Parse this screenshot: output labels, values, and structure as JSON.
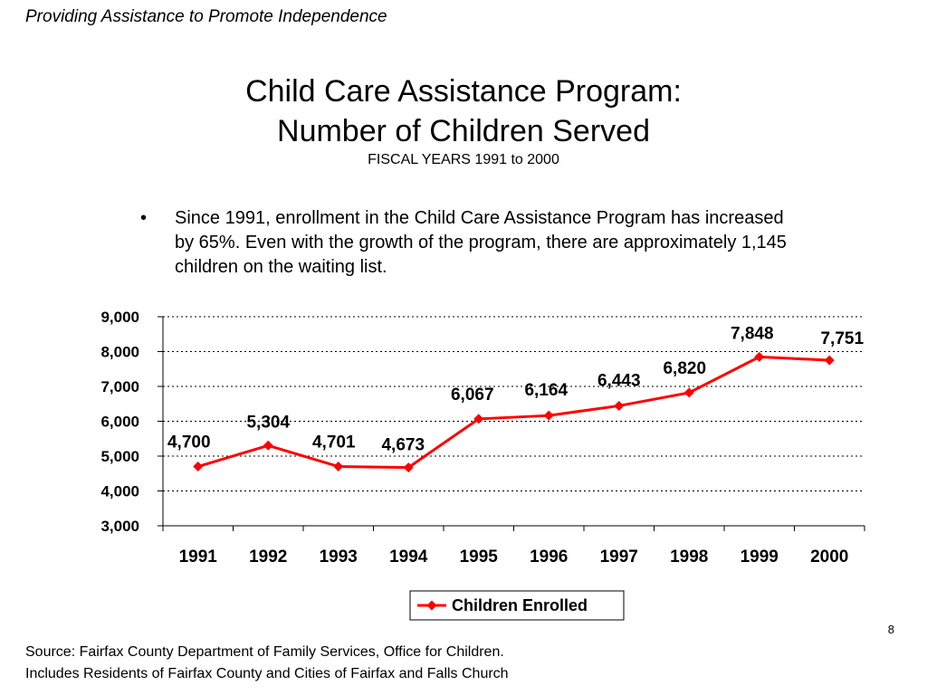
{
  "header": {
    "tagline": "Providing Assistance to Promote Independence"
  },
  "slide": {
    "title_line1": "Child Care Assistance Program:",
    "title_line2": "Number of Children Served",
    "subtitle": "FISCAL YEARS 1991 to 2000",
    "bullet_symbol": "•",
    "bullet_text": "Since 1991, enrollment in the Child Care Assistance Program has increased by 65%.  Even with the growth of the program, there are approximately 1,145 children on the waiting list.",
    "page_number": "8"
  },
  "footer": {
    "source_line1": "Source:  Fairfax County Department of Family Services, Office for Children.",
    "source_line2": "Includes Residents of Fairfax County and Cities of Fairfax and Falls Church"
  },
  "chart_data": {
    "type": "line",
    "categories": [
      "1991",
      "1992",
      "1993",
      "1994",
      "1995",
      "1996",
      "1997",
      "1998",
      "1999",
      "2000"
    ],
    "series": [
      {
        "name": "Children Enrolled",
        "values": [
          4700,
          5304,
          4701,
          4673,
          6067,
          6164,
          6443,
          6820,
          7848,
          7751
        ],
        "labels": [
          "4,700",
          "5,304",
          "4,701",
          "4,673",
          "6,067",
          "6,164",
          "6,443",
          "6,820",
          "7,848",
          "7,751"
        ],
        "color": "#ff0000",
        "marker": "diamond"
      }
    ],
    "ylim": [
      3000,
      9000
    ],
    "yticks": [
      3000,
      4000,
      5000,
      6000,
      7000,
      8000,
      9000
    ],
    "ytick_labels": [
      "3,000",
      "4,000",
      "5,000",
      "6,000",
      "7,000",
      "8,000",
      "9,000"
    ],
    "grid": true,
    "legend_position": "bottom-center"
  }
}
